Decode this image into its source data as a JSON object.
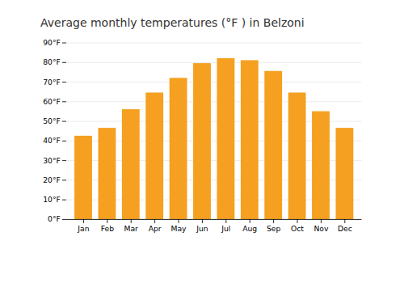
{
  "chart_data": {
    "type": "bar",
    "title": "Average monthly temperatures (°F ) in Belzoni",
    "categories": [
      "Jan",
      "Feb",
      "Mar",
      "Apr",
      "May",
      "Jun",
      "Jul",
      "Aug",
      "Sep",
      "Oct",
      "Nov",
      "Dec"
    ],
    "values": [
      42.5,
      46.5,
      56,
      64.5,
      72,
      79.5,
      82,
      81,
      75.5,
      64.5,
      55,
      46.5
    ],
    "color": "#F5A020",
    "ylim": [
      0,
      90
    ],
    "yticks": [
      {
        "value": 0,
        "label": "0°F"
      },
      {
        "value": 10,
        "label": "10°F"
      },
      {
        "value": 20,
        "label": "20°F"
      },
      {
        "value": 30,
        "label": "30°F"
      },
      {
        "value": 40,
        "label": "40°F"
      },
      {
        "value": 50,
        "label": "50°F"
      },
      {
        "value": 60,
        "label": "60°F"
      },
      {
        "value": 70,
        "label": "70°F"
      },
      {
        "value": 80,
        "label": "80°F"
      },
      {
        "value": 90,
        "label": "90°F"
      }
    ],
    "grid": true
  }
}
